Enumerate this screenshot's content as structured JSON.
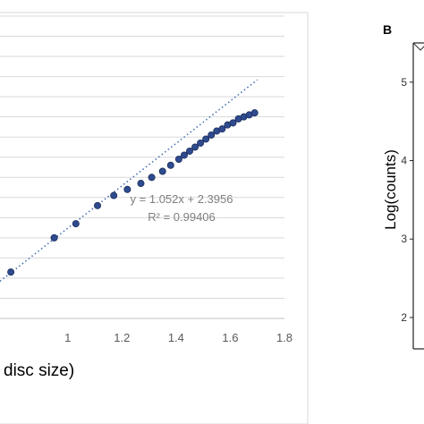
{
  "chart_data": [
    {
      "type": "scatter",
      "xlabel": "disc size)",
      "x_tick_labels": [
        "1",
        "1.2",
        "1.4",
        "1.6",
        "1.8"
      ],
      "xlim": [
        0.75,
        1.8
      ],
      "ylim": [
        3.0,
        4.5
      ],
      "grid": true,
      "trendline": {
        "style": "dotted",
        "equation": "y = 1.052x + 2.3956",
        "r_squared": "R² = 0.99406",
        "slope": 1.052,
        "intercept": 2.3956
      },
      "series": [
        {
          "color": "#2f4b8f",
          "points": [
            {
              "x": 0.79,
              "y": 3.23
            },
            {
              "x": 0.95,
              "y": 3.4
            },
            {
              "x": 1.03,
              "y": 3.47
            },
            {
              "x": 1.11,
              "y": 3.56
            },
            {
              "x": 1.17,
              "y": 3.61
            },
            {
              "x": 1.22,
              "y": 3.64
            },
            {
              "x": 1.27,
              "y": 3.67
            },
            {
              "x": 1.31,
              "y": 3.7
            },
            {
              "x": 1.35,
              "y": 3.73
            },
            {
              "x": 1.38,
              "y": 3.76
            },
            {
              "x": 1.41,
              "y": 3.79
            },
            {
              "x": 1.43,
              "y": 3.81
            },
            {
              "x": 1.45,
              "y": 3.83
            },
            {
              "x": 1.47,
              "y": 3.85
            },
            {
              "x": 1.49,
              "y": 3.87
            },
            {
              "x": 1.51,
              "y": 3.89
            },
            {
              "x": 1.53,
              "y": 3.91
            },
            {
              "x": 1.55,
              "y": 3.93
            },
            {
              "x": 1.57,
              "y": 3.94
            },
            {
              "x": 1.59,
              "y": 3.96
            },
            {
              "x": 1.61,
              "y": 3.97
            },
            {
              "x": 1.63,
              "y": 3.99
            },
            {
              "x": 1.65,
              "y": 4.0
            },
            {
              "x": 1.67,
              "y": 4.01
            },
            {
              "x": 1.69,
              "y": 4.02
            }
          ]
        }
      ]
    },
    {
      "type": "line",
      "panel_label": "B",
      "ylabel": "Log(counts)",
      "y_tick_labels": [
        "2",
        "3",
        "4",
        "5"
      ],
      "ylim": [
        1.6,
        5.5
      ]
    }
  ]
}
